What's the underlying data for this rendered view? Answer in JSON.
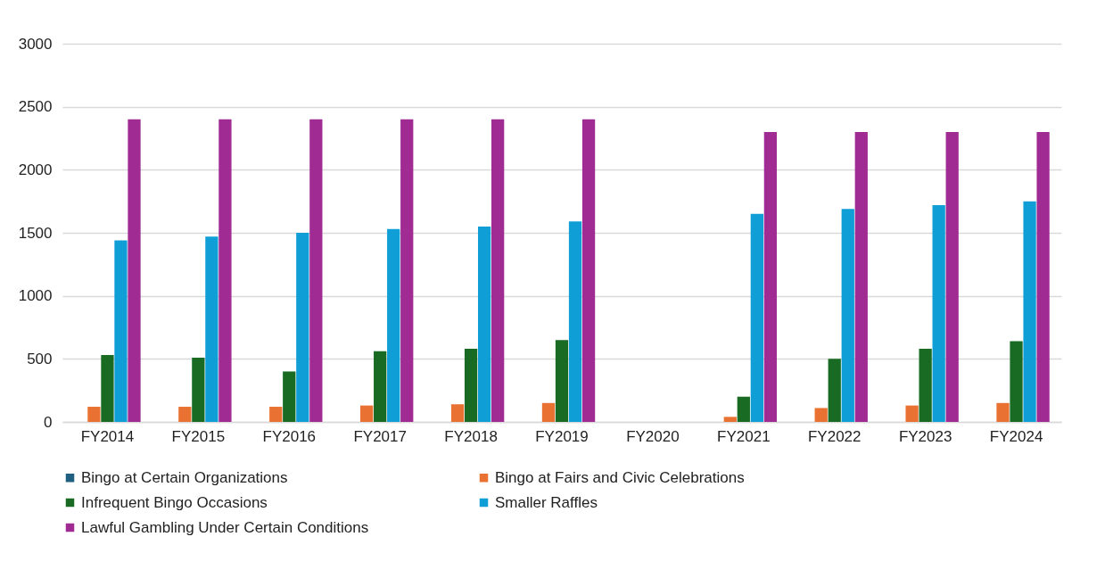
{
  "chart_data": {
    "type": "bar",
    "categories": [
      "FY2014",
      "FY2015",
      "FY2016",
      "FY2017",
      "FY2018",
      "FY2019",
      "FY2020",
      "FY2021",
      "FY2022",
      "FY2023",
      "FY2024"
    ],
    "series": [
      {
        "name": "Bingo at Certain Organizations",
        "color": "#1f5f7f",
        "values": [
          0,
          0,
          0,
          0,
          0,
          0,
          null,
          0,
          0,
          0,
          0
        ]
      },
      {
        "name": "Bingo at Fairs and Civic Celebrations",
        "color": "#e97132",
        "values": [
          120,
          120,
          120,
          130,
          140,
          150,
          null,
          40,
          110,
          130,
          150
        ]
      },
      {
        "name": "Infrequent Bingo Occasions",
        "color": "#196b24",
        "values": [
          530,
          510,
          400,
          560,
          580,
          650,
          null,
          200,
          500,
          580,
          640
        ]
      },
      {
        "name": "Smaller Raffles",
        "color": "#0f9ed5",
        "values": [
          1440,
          1470,
          1500,
          1530,
          1550,
          1590,
          null,
          1650,
          1690,
          1720,
          1750
        ]
      },
      {
        "name": "Lawful Gambling Under Certain Conditions",
        "color": "#a02b93",
        "values": [
          2400,
          2400,
          2400,
          2400,
          2400,
          2400,
          null,
          2300,
          2300,
          2300,
          2300
        ]
      }
    ],
    "ylim": [
      0,
      3000
    ],
    "yticks": [
      0,
      500,
      1000,
      1500,
      2000,
      2500,
      3000
    ],
    "grid": "y",
    "legend": "bottom"
  }
}
